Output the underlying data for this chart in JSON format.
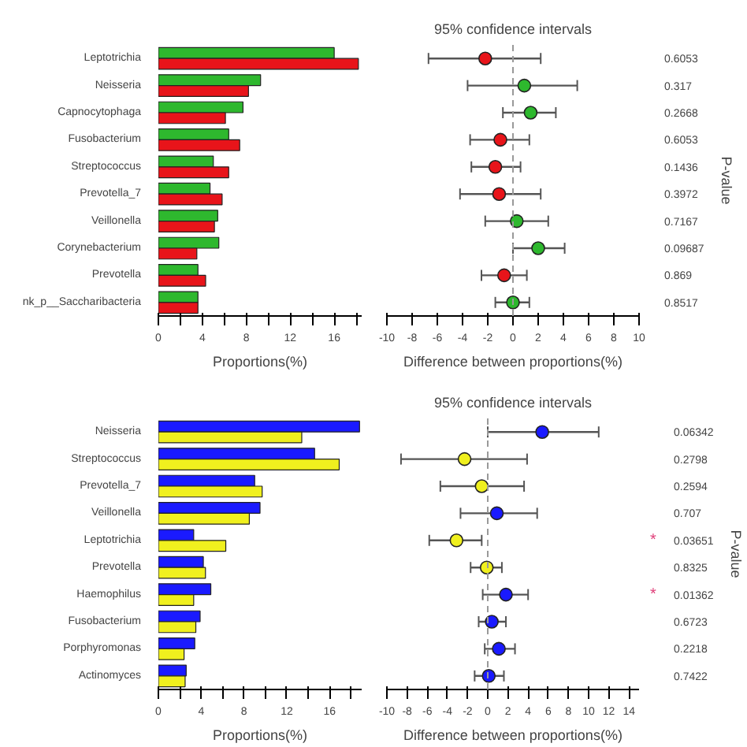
{
  "chart_data": [
    {
      "type": "bar",
      "orientation": "horizontal",
      "xlabel": "Proportions(%)",
      "categories": [
        "Leptotrichia",
        "Neisseria",
        "Capnocytophaga",
        "Fusobacterium",
        "Streptococcus",
        "Prevotella_7",
        "Veillonella",
        "Corynebacterium",
        "Prevotella",
        "nk_p__Saccharibacteria"
      ],
      "series": [
        {
          "color": "#2eb82e",
          "values": [
            16.0,
            9.3,
            7.7,
            6.4,
            5.0,
            4.7,
            5.4,
            5.5,
            3.6,
            3.6
          ]
        },
        {
          "color": "#e8141a",
          "values": [
            18.2,
            8.2,
            6.1,
            7.4,
            6.4,
            5.8,
            5.1,
            3.5,
            4.3,
            3.6
          ]
        }
      ],
      "xlim": [
        0,
        18.5
      ],
      "xticks": [
        0,
        {
          "value": 2,
          "label": null
        },
        4,
        {
          "value": 6,
          "label": null
        },
        8,
        {
          "value": 10,
          "label": null
        },
        12,
        {
          "value": 14,
          "label": null
        },
        16,
        {
          "value": 18,
          "label": null
        }
      ],
      "grid": false
    },
    {
      "type": "scatter",
      "orientation": "horizontal",
      "title": "95% confidence intervals",
      "xlabel": "Difference between proportions(%)",
      "y2label": "P-value",
      "categories": [
        "Leptotrichia",
        "Neisseria",
        "Capnocytophaga",
        "Fusobacterium",
        "Streptococcus",
        "Prevotella_7",
        "Veillonella",
        "Corynebacterium",
        "Prevotella",
        "nk_p__Saccharibacteria"
      ],
      "values": [
        -2.2,
        0.9,
        1.4,
        -1.0,
        -1.4,
        -1.1,
        0.3,
        2.0,
        -0.7,
        0.0
      ],
      "colors": [
        "#e8141a",
        "#2eb82e",
        "#2eb82e",
        "#e8141a",
        "#e8141a",
        "#e8141a",
        "#2eb82e",
        "#2eb82e",
        "#e8141a",
        "#2eb82e"
      ],
      "errors": [
        [
          -6.7,
          2.2
        ],
        [
          -3.6,
          5.1
        ],
        [
          -0.8,
          3.4
        ],
        [
          -3.4,
          1.3
        ],
        [
          -3.3,
          0.6
        ],
        [
          -4.2,
          2.2
        ],
        [
          -2.2,
          2.8
        ],
        [
          0.0,
          4.1
        ],
        [
          -2.5,
          1.1
        ],
        [
          -1.4,
          1.3
        ]
      ],
      "xlim": [
        -10,
        10
      ],
      "xticks": [
        -10,
        -8,
        -6,
        -4,
        -2,
        0,
        2,
        4,
        6,
        8,
        10
      ],
      "marker": "circle",
      "grid": false,
      "tick_labels": "x",
      "ref_lines": [
        {
          "axis": "x",
          "value": 0,
          "line_style": "dashed",
          "color": "#999999"
        }
      ],
      "annotations": [
        "0.6053",
        "0.317",
        "0.2668",
        "0.6053",
        "0.1436",
        "0.3972",
        "0.7167",
        "0.09687",
        "0.869",
        "0.8517"
      ]
    },
    {
      "type": "bar",
      "orientation": "horizontal",
      "xlabel": "Proportions(%)",
      "categories": [
        "Neisseria",
        "Streptococcus",
        "Prevotella_7",
        "Veillonella",
        "Leptotrichia",
        "Prevotella",
        "Haemophilus",
        "Fusobacterium",
        "Porphyromonas",
        "Actinomyces"
      ],
      "series": [
        {
          "color": "#1a1aff",
          "values": [
            18.8,
            14.6,
            9.0,
            9.5,
            3.3,
            4.2,
            4.9,
            3.9,
            3.4,
            2.6
          ]
        },
        {
          "color": "#f0f01e",
          "values": [
            13.4,
            16.9,
            9.7,
            8.5,
            6.3,
            4.4,
            3.3,
            3.5,
            2.4,
            2.5
          ]
        }
      ],
      "xlim": [
        0,
        19
      ],
      "xticks": [
        0,
        {
          "value": 2,
          "label": null
        },
        4,
        {
          "value": 6,
          "label": null
        },
        8,
        {
          "value": 10,
          "label": null
        },
        12,
        {
          "value": 14,
          "label": null
        },
        16,
        {
          "value": 18,
          "label": null
        }
      ],
      "grid": false
    },
    {
      "type": "scatter",
      "orientation": "horizontal",
      "title": "95% confidence intervals",
      "xlabel": "Difference between proportions(%)",
      "y2label": "P-value",
      "categories": [
        "Neisseria",
        "Streptococcus",
        "Prevotella_7",
        "Veillonella",
        "Leptotrichia",
        "Prevotella",
        "Haemophilus",
        "Fusobacterium",
        "Porphyromonas",
        "Actinomyces"
      ],
      "values": [
        5.4,
        -2.3,
        -0.6,
        0.9,
        -3.1,
        -0.1,
        1.8,
        0.4,
        1.1,
        0.1
      ],
      "colors": [
        "#1a1aff",
        "#f0f01e",
        "#f0f01e",
        "#1a1aff",
        "#f0f01e",
        "#f0f01e",
        "#1a1aff",
        "#1a1aff",
        "#1a1aff",
        "#1a1aff"
      ],
      "errors": [
        [
          0.0,
          11.0
        ],
        [
          -8.6,
          3.9
        ],
        [
          -4.7,
          3.6
        ],
        [
          -2.7,
          4.9
        ],
        [
          -5.8,
          -0.6
        ],
        [
          -1.7,
          1.4
        ],
        [
          -0.5,
          4.0
        ],
        [
          -0.9,
          1.8
        ],
        [
          -0.3,
          2.7
        ],
        [
          -1.3,
          1.6
        ]
      ],
      "xlim": [
        -10,
        15
      ],
      "xticks": [
        -10,
        -8,
        -6,
        -4,
        -2,
        0,
        2,
        4,
        6,
        8,
        10,
        12,
        14
      ],
      "marker": "circle",
      "grid": false,
      "tick_labels": "x",
      "ref_lines": [
        {
          "axis": "x",
          "value": 0,
          "line_style": "dashed",
          "color": "#999999"
        }
      ],
      "annotations": [
        "0.06342",
        "0.2798",
        "0.2594",
        "0.707",
        "*",
        "0.03651",
        "0.8325",
        "*",
        "0.01362",
        "0.6723",
        "0.2218",
        "0.7422"
      ]
    }
  ]
}
